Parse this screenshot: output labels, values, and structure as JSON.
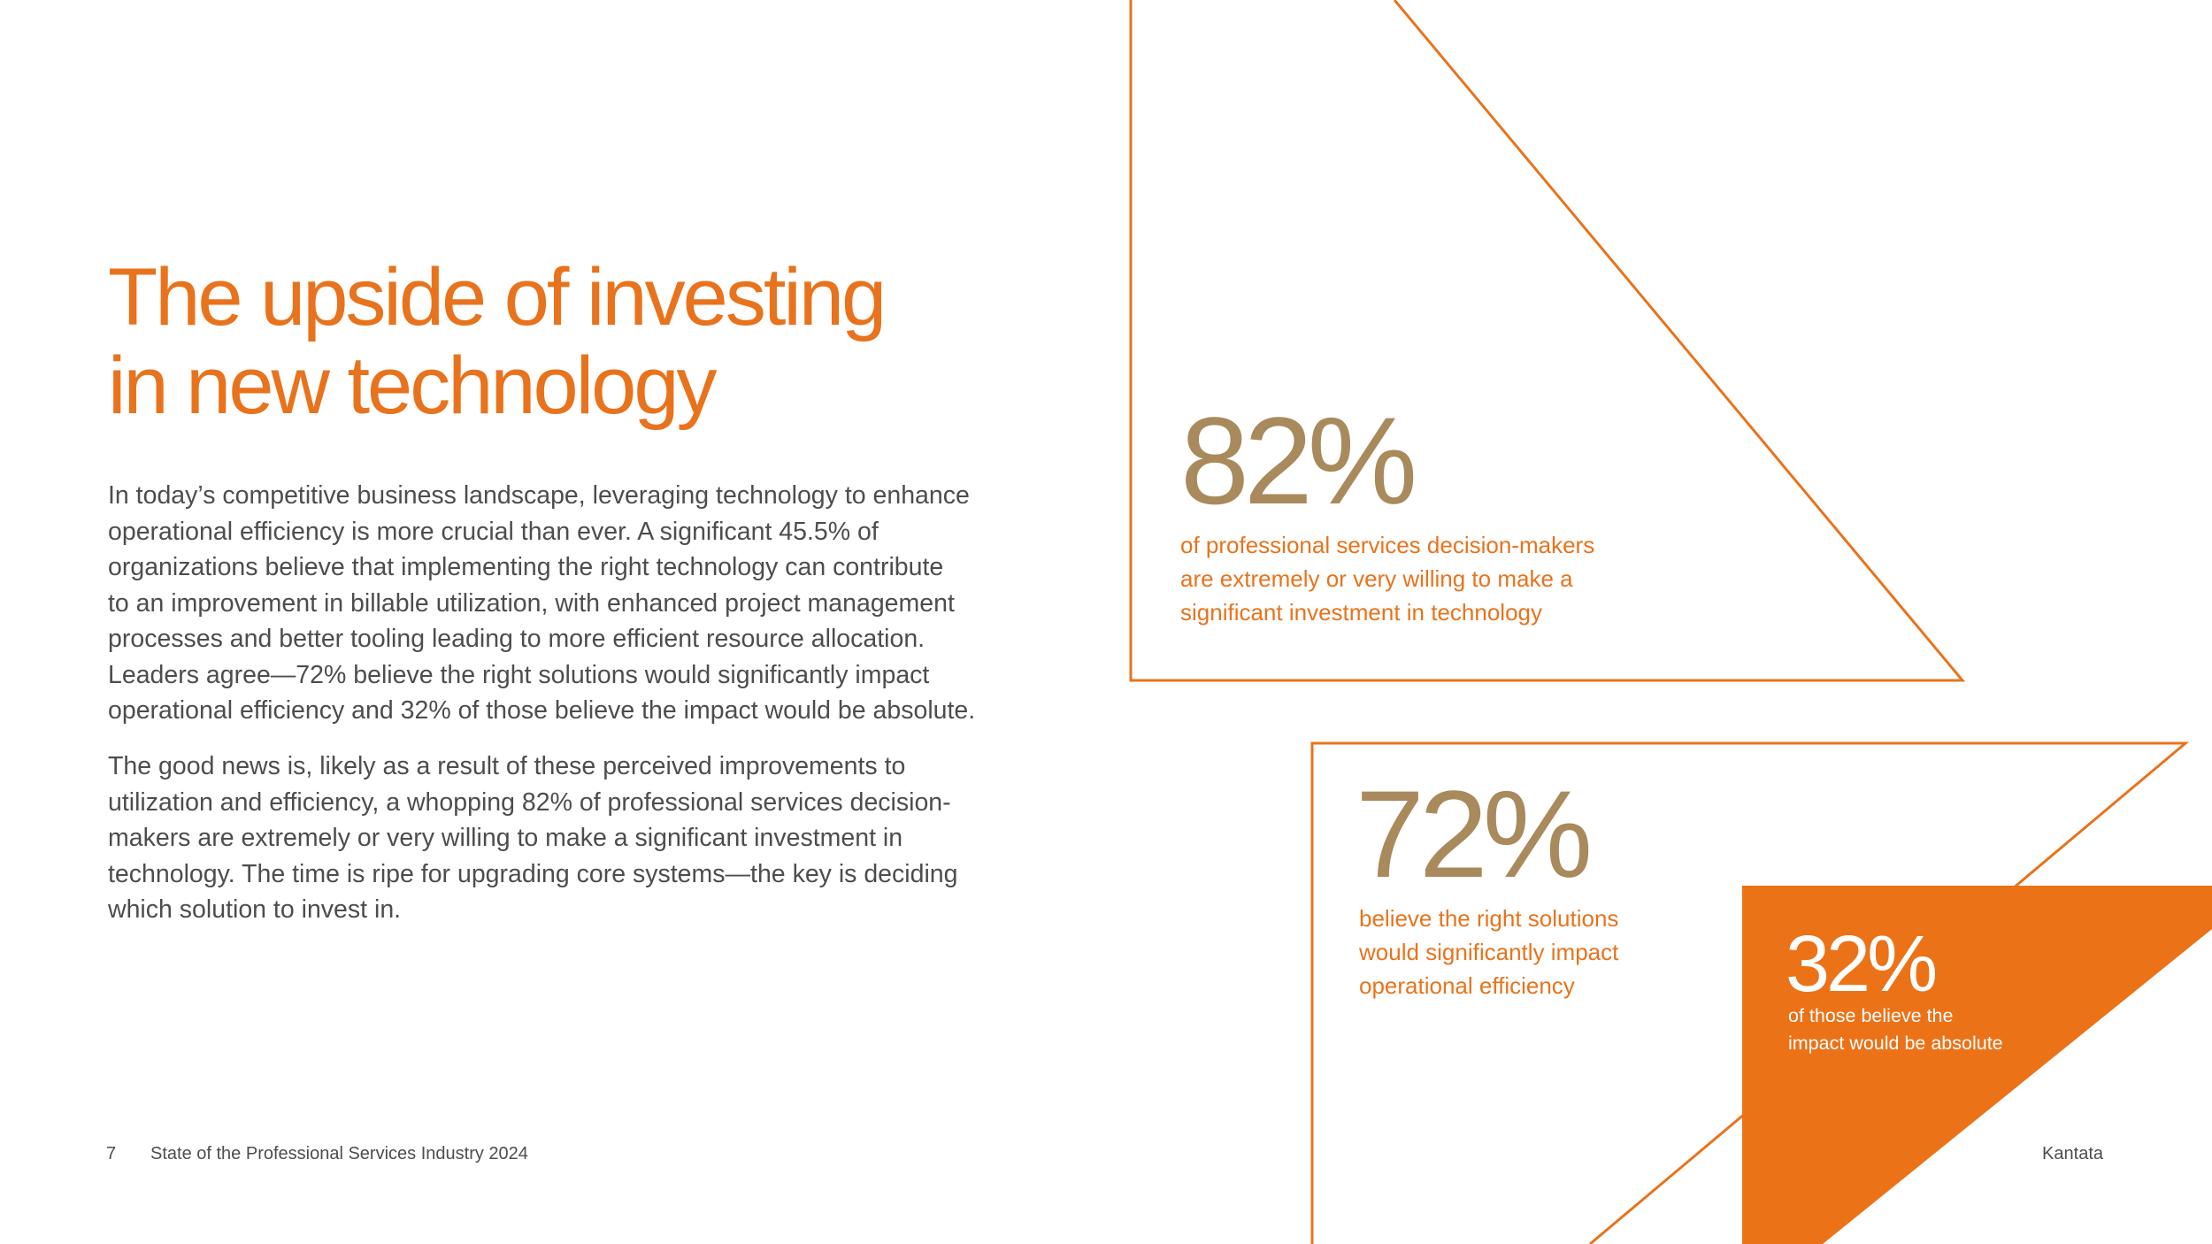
{
  "heading": {
    "line1": "The upside of investing",
    "line2": "in new technology"
  },
  "body": {
    "paragraph1": [
      "In today’s competitive business landscape, leveraging technology to enhance",
      "operational efficiency is more crucial than ever. A significant 45.5% of",
      "organizations believe that implementing the right technology can contribute",
      "to an improvement in billable utilization, with enhanced project management",
      "processes and better tooling leading to more efficient resource allocation.",
      "Leaders agree—72% believe the right solutions would significantly impact",
      "operational efficiency and 32% of those believe the impact would be absolute."
    ],
    "paragraph2": [
      "The good news is, likely as a result of these perceived improvements to",
      "utilization and efficiency, a whopping 82% of professional services decision-",
      "makers are extremely or very willing to make a significant investment in",
      "technology. The time is ripe for upgrading core systems—the key is deciding",
      "which solution to invest in."
    ]
  },
  "stats": [
    {
      "value": "82%",
      "lines": [
        "of professional services decision-makers",
        "are extremely or very willing to make a",
        "significant investment in technology"
      ]
    },
    {
      "value": "72%",
      "lines": [
        "believe the right solutions",
        "would significantly impact",
        "operational efficiency"
      ]
    },
    {
      "value": "32%",
      "lines": [
        "of those believe the",
        "impact would be absolute"
      ]
    }
  ],
  "footer": {
    "page_number": "7",
    "document_title": "State of the Professional Services Industry 2024",
    "brand": "Kantata"
  },
  "colors": {
    "accent_orange": "#e8731c",
    "stat_number_tan": "#a88a5c",
    "body_text": "#4d4d4d",
    "background": "#ffffff"
  }
}
